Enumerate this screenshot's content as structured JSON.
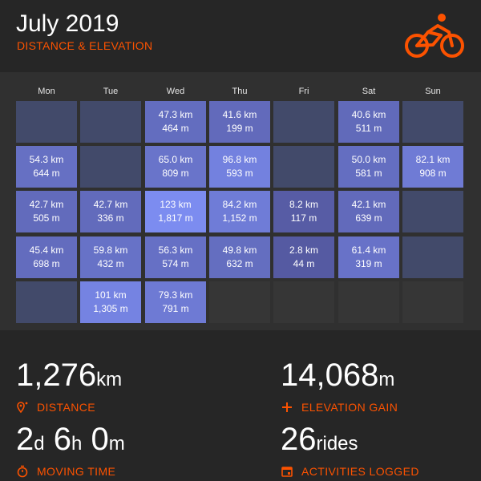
{
  "header": {
    "title": "July 2019",
    "subtitle": "DISTANCE & ELEVATION",
    "logo_icon": "cyclist-icon",
    "accent_color": "#fc5200"
  },
  "calendar": {
    "days": [
      "Mon",
      "Tue",
      "Wed",
      "Thu",
      "Fri",
      "Sat",
      "Sun"
    ],
    "weeks": [
      [
        null,
        null,
        {
          "distance": "47.3 km",
          "elevation": "464 m"
        },
        {
          "distance": "41.6 km",
          "elevation": "199 m"
        },
        null,
        {
          "distance": "40.6 km",
          "elevation": "511 m"
        },
        null
      ],
      [
        {
          "distance": "54.3 km",
          "elevation": "644 m"
        },
        null,
        {
          "distance": "65.0 km",
          "elevation": "809 m"
        },
        {
          "distance": "96.8 km",
          "elevation": "593 m"
        },
        null,
        {
          "distance": "50.0 km",
          "elevation": "581 m"
        },
        {
          "distance": "82.1 km",
          "elevation": "908 m"
        }
      ],
      [
        {
          "distance": "42.7 km",
          "elevation": "505 m"
        },
        {
          "distance": "42.7 km",
          "elevation": "336 m"
        },
        {
          "distance": "123 km",
          "elevation": "1,817 m"
        },
        {
          "distance": "84.2 km",
          "elevation": "1,152 m"
        },
        {
          "distance": "8.2 km",
          "elevation": "117 m"
        },
        {
          "distance": "42.1 km",
          "elevation": "639 m"
        },
        null
      ],
      [
        {
          "distance": "45.4 km",
          "elevation": "698 m"
        },
        {
          "distance": "59.8 km",
          "elevation": "432 m"
        },
        {
          "distance": "56.3 km",
          "elevation": "574 m"
        },
        {
          "distance": "49.8 km",
          "elevation": "632 m"
        },
        {
          "distance": "2.8 km",
          "elevation": "44 m"
        },
        {
          "distance": "61.4 km",
          "elevation": "319 m"
        },
        null
      ],
      [
        null,
        {
          "distance": "101 km",
          "elevation": "1,305 m"
        },
        {
          "distance": "79.3 km",
          "elevation": "791 m"
        },
        "out",
        "out",
        "out",
        "out"
      ]
    ]
  },
  "stats": {
    "distance": {
      "value": "1,276",
      "unit": "km",
      "label": "DISTANCE",
      "icon": "map-pin-icon"
    },
    "elevation": {
      "value": "14,068",
      "unit": "m",
      "label": "ELEVATION GAIN",
      "icon": "plus-icon"
    },
    "moving_time": {
      "d": "2",
      "d_unit": "d",
      "h": "6",
      "h_unit": "h",
      "m": "0",
      "m_unit": "m",
      "label": "MOVING TIME",
      "icon": "stopwatch-icon"
    },
    "activities": {
      "value": "26",
      "unit": "rides",
      "label": "ACTIVITIES LOGGED",
      "icon": "calendar-icon"
    }
  }
}
